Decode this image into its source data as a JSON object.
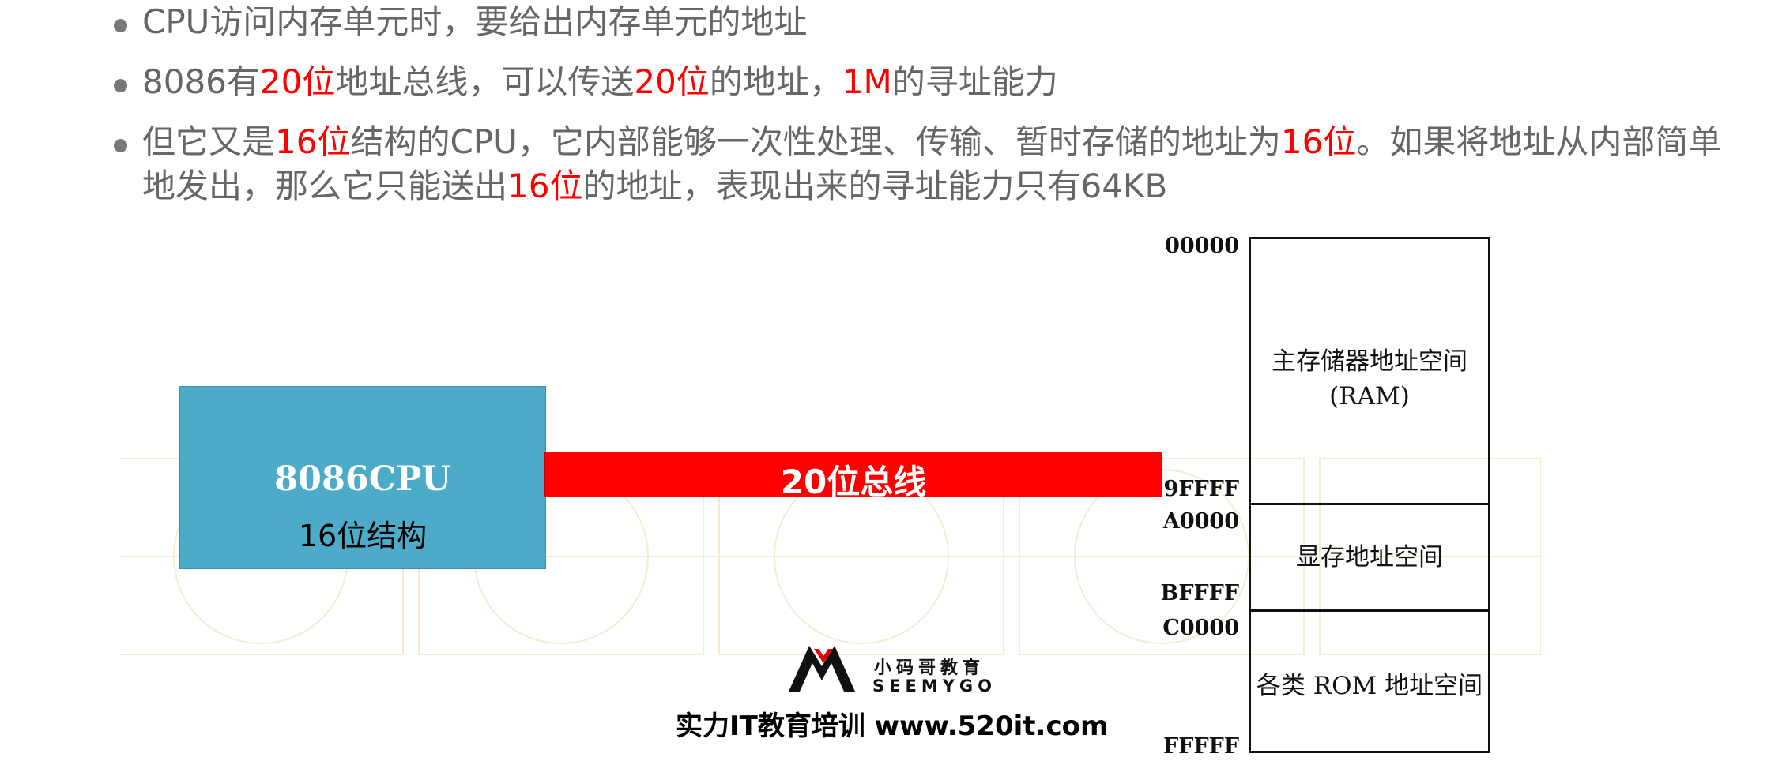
{
  "bullets": [
    {
      "segments": [
        {
          "text": "CPU访问内存单元时，要给出内存单元的地址",
          "red": false
        }
      ]
    },
    {
      "segments": [
        {
          "text": "8086有",
          "red": false
        },
        {
          "text": "20位",
          "red": true
        },
        {
          "text": "地址总线，可以传送",
          "red": false
        },
        {
          "text": "20位",
          "red": true
        },
        {
          "text": "的地址，",
          "red": false
        },
        {
          "text": "1M",
          "red": true
        },
        {
          "text": "的寻址能力",
          "red": false
        }
      ]
    },
    {
      "segments": [
        {
          "text": "但它又是",
          "red": false
        },
        {
          "text": "16位",
          "red": true
        },
        {
          "text": "结构的CPU，它内部能够一次性处理、传输、暂时存储的地址为",
          "red": false
        },
        {
          "text": "16位",
          "red": true
        },
        {
          "text": "。如果将地址从内部简单地发出，那么它只能送出",
          "red": false
        },
        {
          "text": "16位",
          "red": true
        },
        {
          "text": "的地址，表现出来的寻址能力只有64KB",
          "red": false
        }
      ]
    }
  ],
  "cpu": {
    "title": "8086CPU",
    "subtitle": "16位结构"
  },
  "bus": {
    "label": "20位总线"
  },
  "memory_map": {
    "regions": [
      {
        "label_line1": "主存储器地址空间",
        "label_line2": "(RAM)",
        "start": "00000",
        "end": "9FFFF"
      },
      {
        "label_line1": "显存地址空间",
        "label_line2": "",
        "start": "A0000",
        "end": "BFFFF"
      },
      {
        "label_line1": "各类 ROM 地址空间",
        "label_line2": "",
        "start": "C0000",
        "end": "FFFFF"
      }
    ]
  },
  "logo": {
    "cn": "小码哥教育",
    "en": "SEEMYGO",
    "slogan": "实力IT教育培训 www.520it.com"
  },
  "colors": {
    "highlight": "#ff0000",
    "cpu_box": "#4babc8",
    "bus": "#ff0000"
  }
}
